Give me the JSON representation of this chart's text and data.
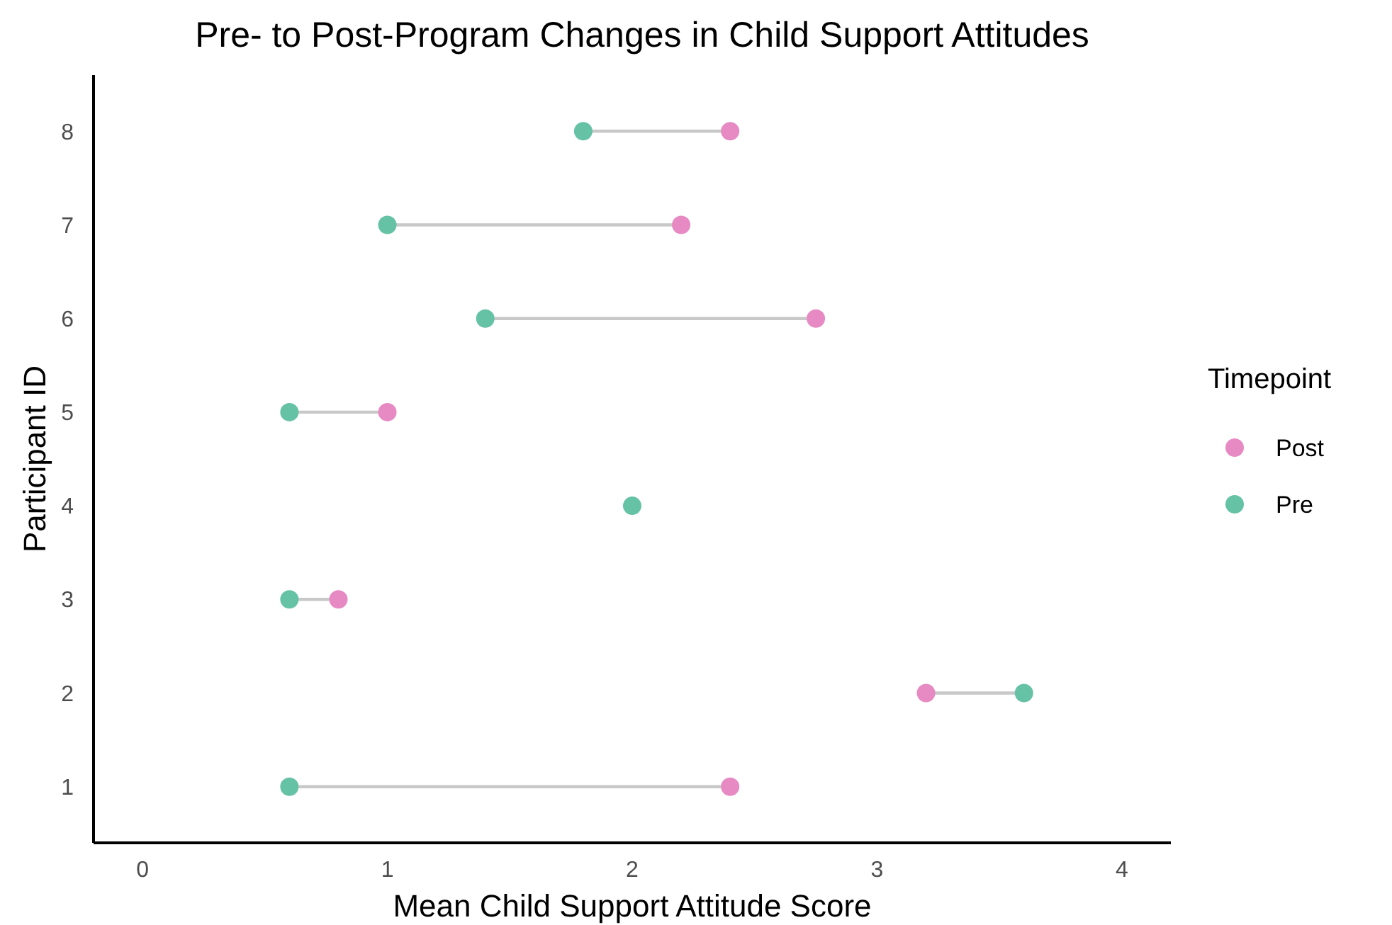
{
  "chart_data": {
    "type": "scatter",
    "orientation": "horizontal",
    "title": "Pre- to Post-Program Changes in Child Support Attitudes",
    "xlabel": "Mean Child Support Attitude Score",
    "ylabel": "Participant ID",
    "legend_title": "Timepoint",
    "categories": [
      "8",
      "7",
      "6",
      "5",
      "4",
      "3",
      "2",
      "1"
    ],
    "series": [
      {
        "name": "Post",
        "color": "#e78ac3",
        "values": [
          2.4,
          2.2,
          2.75,
          1.0,
          null,
          0.8,
          3.2,
          2.4
        ]
      },
      {
        "name": "Pre",
        "color": "#66c2a5",
        "values": [
          1.8,
          1.0,
          1.4,
          0.6,
          2.0,
          0.6,
          3.6,
          0.6
        ]
      }
    ],
    "xlim": [
      -0.2,
      4.2
    ],
    "xticks": [
      0,
      1,
      2,
      3,
      4
    ],
    "grid": false,
    "legend": "right",
    "marker": "circle"
  }
}
